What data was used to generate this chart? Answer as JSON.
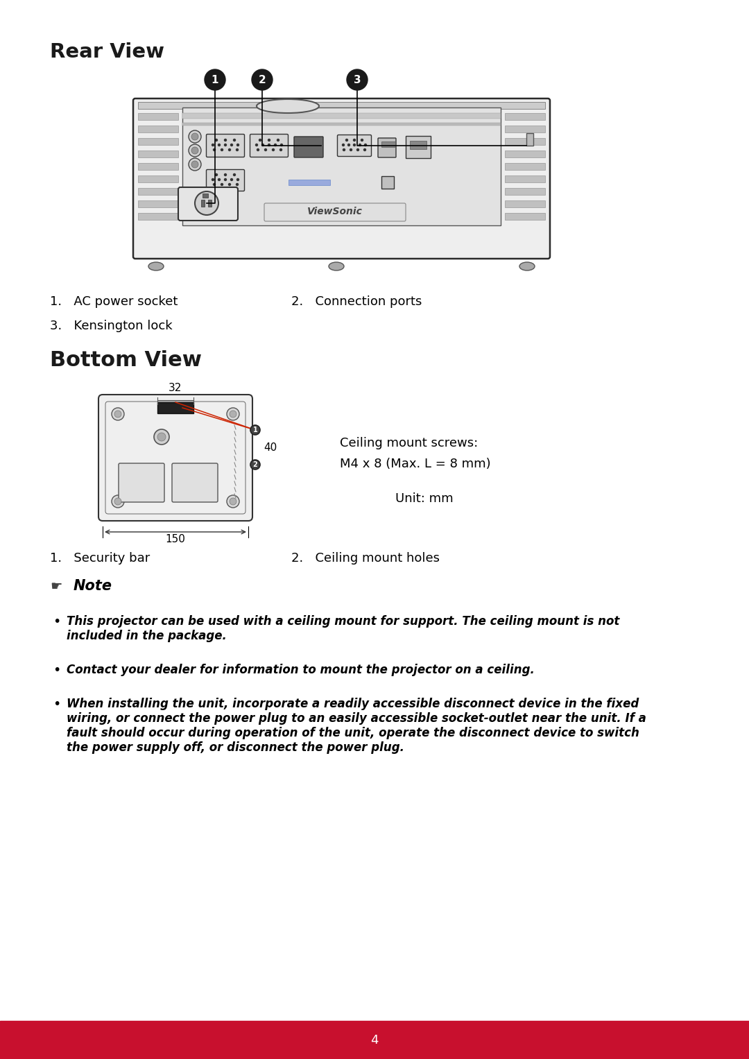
{
  "page_bg": "#ffffff",
  "footer_bg": "#c8102e",
  "footer_text": "4",
  "rear_view_title": "Rear View",
  "bottom_view_title": "Bottom View",
  "label_1a": "1.   AC power socket",
  "label_2a": "2.   Connection ports",
  "label_3a": "3.   Kensington lock",
  "label_1b": "1.   Security bar",
  "label_2b": "2.   Ceiling mount holes",
  "ceiling_mount_line1": "Ceiling mount screws:",
  "ceiling_mount_line2": "M4 x 8 (Max. L = 8 mm)",
  "unit_text": "Unit: mm",
  "dim_32": "32",
  "dim_40": "40",
  "dim_150": "150",
  "note_title": "Note",
  "note1": "This projector can be used with a ceiling mount for support. The ceiling mount is not\nincluded in the package.",
  "note2": "Contact your dealer for information to mount the projector on a ceiling.",
  "note3": "When installing the unit, incorporate a readily accessible disconnect device in the fixed\nwiring, or connect the power plug to an easily accessible socket-outlet near the unit. If a\nfault should occur during operation of the unit, operate the disconnect device to switch\nthe power supply off, or disconnect the power plug."
}
